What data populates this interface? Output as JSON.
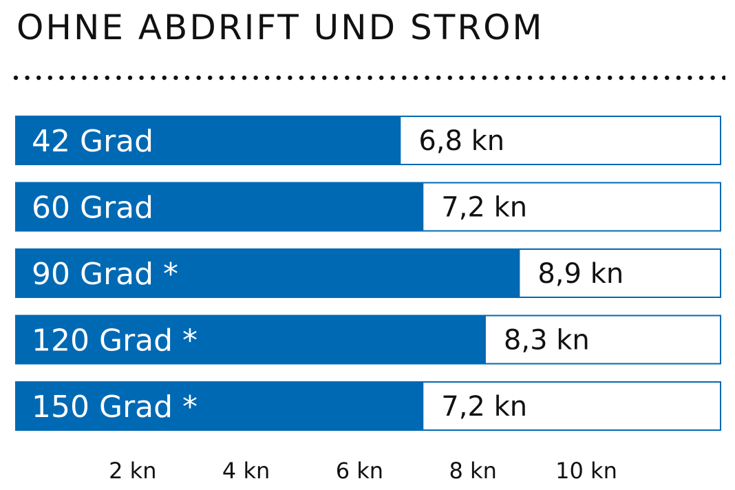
{
  "chart_data": {
    "type": "bar",
    "orientation": "horizontal",
    "title": "OHNE ABDRIFT UND STROM",
    "categories": [
      "42 Grad",
      "60 Grad",
      "90 Grad *",
      "120 Grad *",
      "150 Grad *"
    ],
    "values": [
      6.8,
      7.2,
      8.9,
      8.3,
      7.2
    ],
    "value_labels": [
      "6,8 kn",
      "7,2 kn",
      "8,9 kn",
      "8,3 kn",
      "7,2 kn"
    ],
    "x_ticks": [
      {
        "value": 2,
        "label": "2 kn"
      },
      {
        "value": 4,
        "label": "4 kn"
      },
      {
        "value": 6,
        "label": "6 kn"
      },
      {
        "value": 8,
        "label": "8 kn"
      },
      {
        "value": 10,
        "label": "10 kn"
      }
    ],
    "xlim": [
      0,
      12
    ],
    "grid": false,
    "colors": {
      "bar": "#0069b4",
      "track_border": "#0069b4",
      "text_on_bar": "#ffffff",
      "text": "#111111"
    }
  }
}
